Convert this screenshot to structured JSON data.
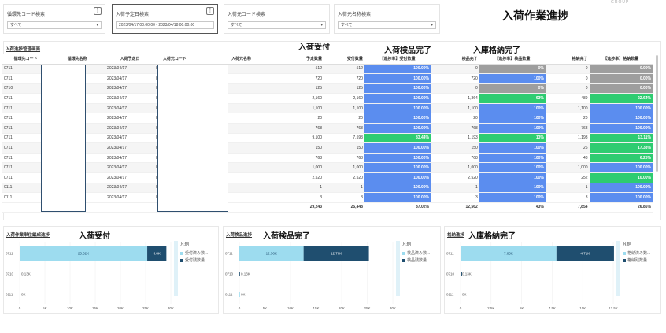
{
  "filters": [
    {
      "label": "循環先コード検索",
      "value": "すべて",
      "active": false
    },
    {
      "label": "入荷予定日検索",
      "value": "2023/04/17 00:00:00 - 2023/04/18 00:00:00",
      "active": true
    },
    {
      "label": "入荷元コード検索",
      "value": "すべて",
      "active": false
    },
    {
      "label": "入荷元名称検索",
      "value": "すべて",
      "active": false
    }
  ],
  "page_title": "入荷作業進捗",
  "corner_text": "GROUP",
  "table_panel": {
    "title": "入荷進捗管理画面",
    "section_labels": [
      "入荷受付",
      "入荷検品完了",
      "入庫格納完了"
    ],
    "columns": [
      "循環先コード",
      "循環先名称",
      "入荷予定日",
      "入荷元コード",
      "入荷元名称",
      "予定数量",
      "受付数量",
      "【進捗率】受付数量",
      "検品完了",
      "【進捗率】検品数量",
      "格納完了",
      "【進捗率】格納数量"
    ],
    "rows": [
      [
        "0711",
        "",
        "2023/04/17",
        "0000062136",
        "",
        "512",
        "512",
        "100.00%",
        "0",
        "0%",
        "0",
        "0.00%"
      ],
      [
        "0711",
        "",
        "2023/04/17",
        "0000063292",
        "",
        "720",
        "720",
        "100.00%",
        "720",
        "100%",
        "0",
        "0.00%"
      ],
      [
        "0710",
        "",
        "2023/04/17",
        "000000000N",
        "",
        "125",
        "125",
        "100.00%",
        "0",
        "0%",
        "0",
        "0.00%"
      ],
      [
        "0711",
        "",
        "2023/04/17",
        "0000062577",
        "",
        "2,160",
        "2,160",
        "100.00%",
        "1,364",
        "63%",
        "489",
        "22.64%"
      ],
      [
        "0711",
        "",
        "2023/04/17",
        "0000001520",
        "",
        "1,100",
        "1,100",
        "100.00%",
        "1,100",
        "100%",
        "1,100",
        "100.00%"
      ],
      [
        "0711",
        "",
        "2023/04/17",
        "0000054018",
        "",
        "20",
        "20",
        "100.00%",
        "20",
        "100%",
        "20",
        "100.00%"
      ],
      [
        "0711",
        "",
        "2023/04/17",
        "0000002165",
        "",
        "768",
        "768",
        "100.00%",
        "768",
        "100%",
        "768",
        "100.00%"
      ],
      [
        "0711",
        "",
        "2023/04/17",
        "0000071231",
        "",
        "9,100",
        "7,593",
        "83.44%",
        "1,193",
        "13%",
        "1,193",
        "13.11%"
      ],
      [
        "0711",
        "",
        "2023/04/17",
        "0000043567",
        "",
        "150",
        "150",
        "100.00%",
        "150",
        "100%",
        "26",
        "17.33%"
      ],
      [
        "0711",
        "",
        "2023/04/17",
        "0000002170",
        "",
        "768",
        "768",
        "100.00%",
        "768",
        "100%",
        "48",
        "6.25%"
      ],
      [
        "0711",
        "",
        "2023/04/17",
        "0000004680",
        "",
        "1,000",
        "1,000",
        "100.00%",
        "1,000",
        "100%",
        "1,000",
        "100.00%"
      ],
      [
        "0711",
        "",
        "2023/04/17",
        "0000001457",
        "",
        "2,520",
        "2,520",
        "100.00%",
        "2,520",
        "100%",
        "252",
        "10.00%"
      ],
      [
        "0111",
        "",
        "2023/04/17",
        "0000000013",
        "",
        "1",
        "1",
        "100.00%",
        "1",
        "100%",
        "1",
        "100.00%"
      ],
      [
        "0111",
        "",
        "2023/04/17",
        "0000024727",
        "",
        "3",
        "3",
        "100.00%",
        "3",
        "100%",
        "3",
        "100.00%"
      ]
    ],
    "totals": [
      "",
      "",
      "",
      "",
      "",
      "29,243",
      "25,448",
      "87.02%",
      "12,562",
      "43%",
      "7,854",
      "26.86%"
    ]
  },
  "colors": {
    "blue": "#5b8def",
    "green": "#2ecc71",
    "gray": "#9e9e9e",
    "done": "#9ddcef",
    "remaining": "#1f4e6f"
  },
  "charts": [
    {
      "panel_title": "入荷作業単位編成進捗",
      "big_label": "入荷受付",
      "categories": [
        "0711",
        "0710",
        "0111"
      ],
      "series": [
        {
          "name": "受付済み数...",
          "values": [
            25320,
            125,
            4
          ]
        },
        {
          "name": "受付残数量...",
          "values": [
            3800,
            0,
            0
          ]
        }
      ],
      "segment_labels": [
        "25.32K",
        "3.8K"
      ],
      "small_labels": [
        "0.13K",
        "0K"
      ],
      "xticks": [
        0,
        5000,
        10000,
        15000,
        20000,
        25000,
        30000
      ],
      "xtick_labels": [
        "0",
        "5K",
        "10K",
        "15K",
        "20K",
        "25K",
        "30K"
      ],
      "xmax": 30000,
      "legend_title": "凡例"
    },
    {
      "panel_title": "入荷検品進捗",
      "big_label": "入荷検品完了",
      "categories": [
        "0711",
        "0710",
        "0111"
      ],
      "series": [
        {
          "name": "検品済み数...",
          "values": [
            12560,
            0,
            4
          ]
        },
        {
          "name": "検品残数量...",
          "values": [
            12760,
            125,
            0
          ]
        }
      ],
      "segment_labels": [
        "12.56K",
        "12.76K"
      ],
      "small_labels": [
        "0.13K",
        "0K"
      ],
      "xticks": [
        0,
        5000,
        10000,
        15000,
        20000,
        25000,
        30000
      ],
      "xtick_labels": [
        "0",
        "5K",
        "10K",
        "15K",
        "20K",
        "25K",
        "30K"
      ],
      "xmax": 30000,
      "legend_title": "凡例"
    },
    {
      "panel_title": "格納進捗",
      "big_label": "入庫格納完了",
      "categories": [
        "0711",
        "0710",
        "0111"
      ],
      "series": [
        {
          "name": "格納済み数...",
          "values": [
            7850,
            0,
            4
          ]
        },
        {
          "name": "格納残数量...",
          "values": [
            4710,
            125,
            0
          ]
        }
      ],
      "segment_labels": [
        "7.85K",
        "4.71K"
      ],
      "small_labels": [
        "0.13K",
        "0K"
      ],
      "xticks": [
        0,
        2500,
        5000,
        7500,
        10000,
        12500
      ],
      "xtick_labels": [
        "0",
        "2.5K",
        "5K",
        "7.5K",
        "10K",
        "12.5K"
      ],
      "xmax": 12500,
      "legend_title": "凡例"
    }
  ]
}
